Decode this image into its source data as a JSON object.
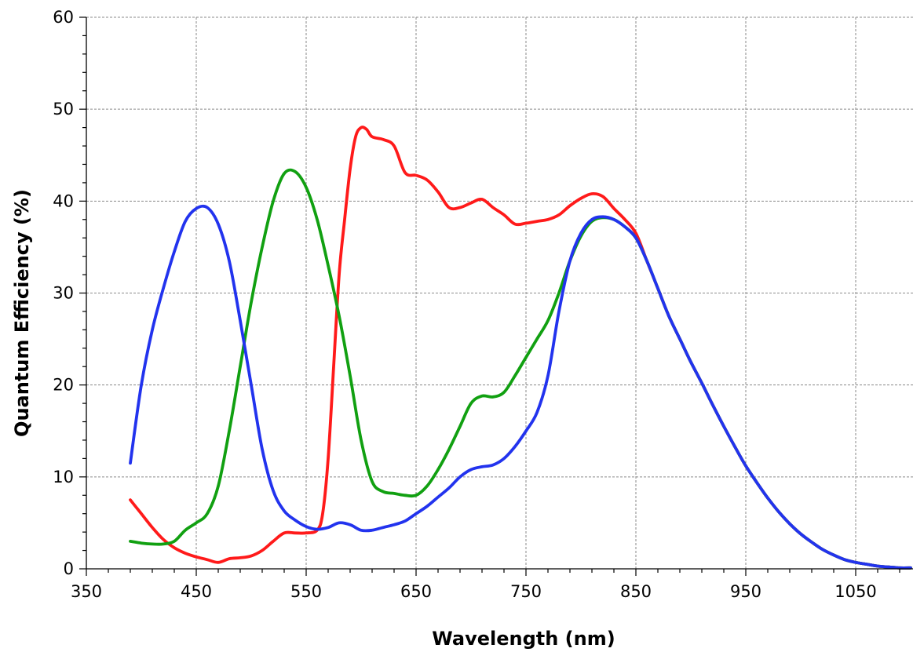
{
  "chart_data": {
    "type": "line",
    "xlabel": "Wavelength (nm)",
    "ylabel": "Quantum Efficiency (%)",
    "xlim": [
      350,
      1100
    ],
    "ylim": [
      0,
      60
    ],
    "xticks": [
      350,
      450,
      550,
      650,
      750,
      850,
      950,
      1050
    ],
    "yticks": [
      0,
      10,
      20,
      30,
      40,
      50,
      60
    ],
    "grid": true,
    "legend": "none",
    "series": [
      {
        "color": "#ff1a1a",
        "x": [
          390,
          400,
          410,
          420,
          430,
          440,
          450,
          460,
          470,
          480,
          490,
          500,
          510,
          520,
          530,
          540,
          550,
          560,
          565,
          570,
          575,
          580,
          585,
          590,
          595,
          600,
          605,
          610,
          620,
          630,
          640,
          650,
          660,
          670,
          680,
          690,
          700,
          710,
          720,
          730,
          740,
          750,
          760,
          770,
          780,
          790,
          800,
          810,
          820,
          830,
          840,
          850,
          860,
          870,
          880,
          890,
          900,
          910,
          920,
          930,
          940,
          950,
          960,
          970,
          980,
          990,
          1000,
          1010,
          1020,
          1030,
          1040,
          1050,
          1060,
          1070,
          1080,
          1090,
          1100
        ],
        "y": [
          7.5,
          6.0,
          4.5,
          3.2,
          2.3,
          1.7,
          1.3,
          1.0,
          0.7,
          1.1,
          1.2,
          1.4,
          2.0,
          3.0,
          3.9,
          3.9,
          3.9,
          4.2,
          6.0,
          12.0,
          22.0,
          32.0,
          38.0,
          43.5,
          47.0,
          48.0,
          47.8,
          47.0,
          46.7,
          46.0,
          43.1,
          42.8,
          42.3,
          41.0,
          39.3,
          39.3,
          39.8,
          40.2,
          39.3,
          38.5,
          37.5,
          37.6,
          37.8,
          38.0,
          38.5,
          39.5,
          40.3,
          40.8,
          40.5,
          39.2,
          38.0,
          36.5,
          33.5,
          30.5,
          27.5,
          25.0,
          22.5,
          20.2,
          17.8,
          15.5,
          13.3,
          11.2,
          9.4,
          7.7,
          6.2,
          4.9,
          3.8,
          2.9,
          2.1,
          1.5,
          1.0,
          0.7,
          0.5,
          0.3,
          0.2,
          0.1,
          0.1
        ]
      },
      {
        "color": "#11a011",
        "x": [
          390,
          400,
          410,
          420,
          430,
          440,
          450,
          460,
          470,
          480,
          490,
          500,
          510,
          520,
          530,
          540,
          550,
          560,
          570,
          580,
          590,
          600,
          610,
          620,
          630,
          640,
          650,
          660,
          670,
          680,
          690,
          700,
          710,
          720,
          730,
          740,
          750,
          760,
          770,
          780,
          790,
          800,
          810,
          820,
          830,
          840,
          850,
          860,
          870,
          880,
          890,
          900,
          910,
          920,
          930,
          940,
          950,
          960,
          970,
          980,
          990,
          1000,
          1010,
          1020,
          1030,
          1040,
          1050,
          1060,
          1070,
          1080,
          1090,
          1100
        ],
        "y": [
          3.0,
          2.8,
          2.7,
          2.7,
          3.0,
          4.2,
          5.0,
          6.0,
          9.0,
          15.0,
          22.0,
          29.0,
          35.0,
          40.0,
          43.0,
          43.2,
          41.5,
          38.0,
          33.0,
          27.5,
          21.0,
          14.0,
          9.5,
          8.4,
          8.2,
          8.0,
          8.0,
          9.0,
          10.8,
          13.0,
          15.5,
          18.0,
          18.8,
          18.7,
          19.2,
          21.0,
          23.0,
          25.0,
          27.0,
          30.0,
          33.5,
          36.2,
          37.8,
          38.2,
          38.0,
          37.2,
          36.0,
          33.5,
          30.5,
          27.5,
          25.0,
          22.5,
          20.2,
          17.8,
          15.5,
          13.3,
          11.2,
          9.4,
          7.7,
          6.2,
          4.9,
          3.8,
          2.9,
          2.1,
          1.5,
          1.0,
          0.7,
          0.5,
          0.3,
          0.2,
          0.1,
          0.1
        ]
      },
      {
        "color": "#2233ee",
        "x": [
          390,
          400,
          410,
          420,
          430,
          440,
          450,
          460,
          470,
          480,
          490,
          500,
          510,
          520,
          530,
          540,
          550,
          560,
          570,
          580,
          590,
          600,
          610,
          620,
          630,
          640,
          650,
          660,
          670,
          680,
          690,
          700,
          710,
          720,
          730,
          740,
          750,
          760,
          770,
          780,
          790,
          800,
          810,
          820,
          830,
          840,
          850,
          860,
          870,
          880,
          890,
          900,
          910,
          920,
          930,
          940,
          950,
          960,
          970,
          980,
          990,
          1000,
          1010,
          1020,
          1030,
          1040,
          1050,
          1060,
          1070,
          1080,
          1090,
          1100
        ],
        "y": [
          11.5,
          20.0,
          26.0,
          30.5,
          34.5,
          37.8,
          39.2,
          39.3,
          37.5,
          33.5,
          27.0,
          20.0,
          13.0,
          8.5,
          6.3,
          5.3,
          4.6,
          4.3,
          4.5,
          5.0,
          4.8,
          4.2,
          4.2,
          4.5,
          4.8,
          5.2,
          6.0,
          6.8,
          7.8,
          8.8,
          10.0,
          10.8,
          11.1,
          11.3,
          12.0,
          13.3,
          15.0,
          17.0,
          21.0,
          28.0,
          33.5,
          36.5,
          38.0,
          38.3,
          38.0,
          37.2,
          36.0,
          33.5,
          30.5,
          27.5,
          25.0,
          22.5,
          20.2,
          17.8,
          15.5,
          13.3,
          11.2,
          9.4,
          7.7,
          6.2,
          4.9,
          3.8,
          2.9,
          2.1,
          1.5,
          1.0,
          0.7,
          0.5,
          0.3,
          0.2,
          0.1,
          0.1
        ]
      }
    ]
  }
}
